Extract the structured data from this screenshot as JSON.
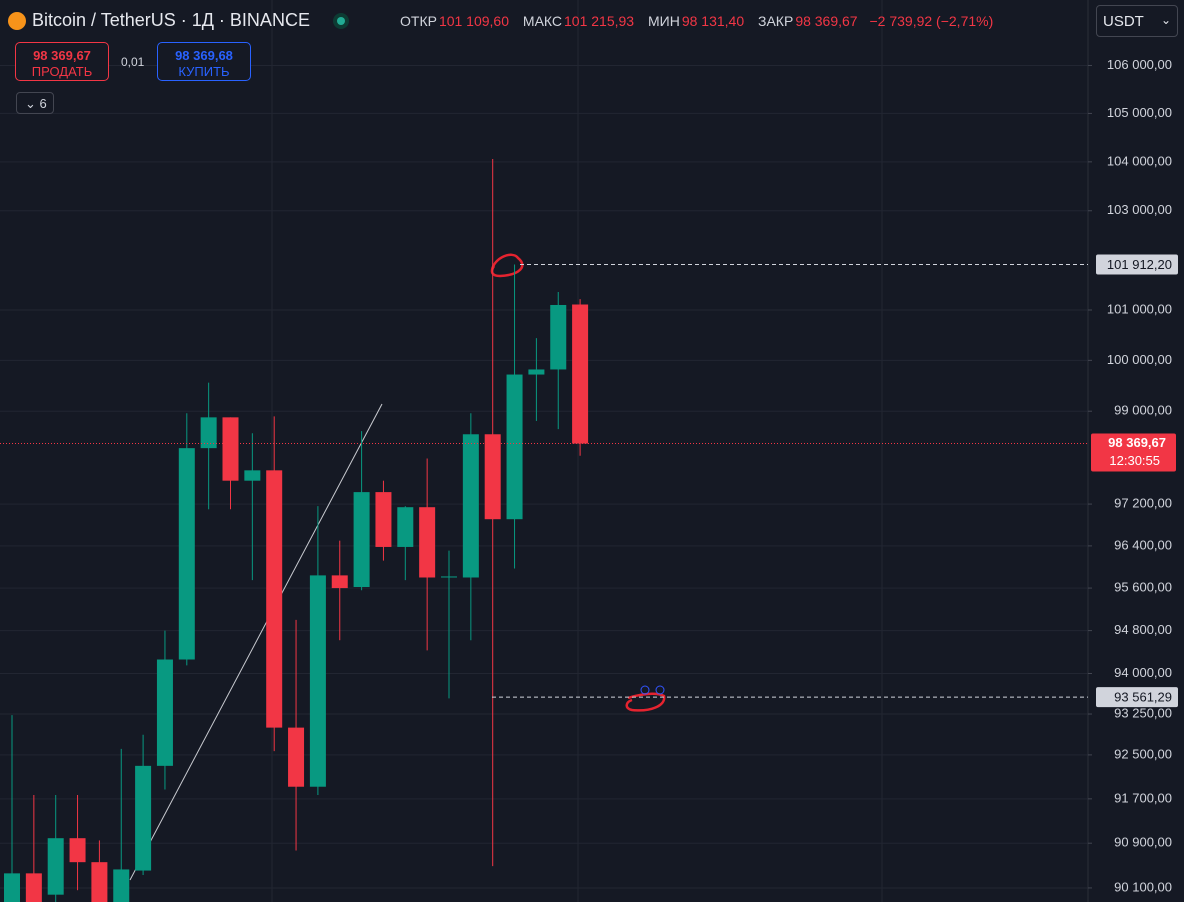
{
  "header": {
    "symbol": "Bitcoin / TetherUS · 1Д · BINANCE",
    "open_label": "ОТКР",
    "open": "101 109,60",
    "high_label": "МАКС",
    "high": "101 215,93",
    "low_label": "МИН",
    "low": "98 131,40",
    "close_label": "ЗАКР",
    "close": "98 369,67",
    "change": "−2 739,92 (−2,71%)",
    "sell_price": "98 369,67",
    "sell_label": "ПРОДАТЬ",
    "spread": "0,01",
    "buy_price": "98 369,68",
    "buy_label": "КУПИТЬ",
    "indicators_count": "6",
    "currency": "USDT"
  },
  "chart_data": {
    "type": "candlestick",
    "log_scale": true,
    "grid": true,
    "up_color": "#089981",
    "down_color": "#f23645",
    "ylim": [
      89850,
      107380
    ],
    "yticks": [
      {
        "value": 106000,
        "label": "106 000,00"
      },
      {
        "value": 105000,
        "label": "105 000,00"
      },
      {
        "value": 104000,
        "label": "104 000,00"
      },
      {
        "value": 103000,
        "label": "103 000,00"
      },
      {
        "value": 101000,
        "label": "101 000,00"
      },
      {
        "value": 100000,
        "label": "100 000,00"
      },
      {
        "value": 99000,
        "label": "99 000,00"
      },
      {
        "value": 97200,
        "label": "97 200,00"
      },
      {
        "value": 96400,
        "label": "96 400,00"
      },
      {
        "value": 95600,
        "label": "95 600,00"
      },
      {
        "value": 94800,
        "label": "94 800,00"
      },
      {
        "value": 94000,
        "label": "94 000,00"
      },
      {
        "value": 93250,
        "label": "93 250,00"
      },
      {
        "value": 92500,
        "label": "92 500,00"
      },
      {
        "value": 91700,
        "label": "91 700,00"
      },
      {
        "value": 90900,
        "label": "90 900,00"
      },
      {
        "value": 90100,
        "label": "90 100,00"
      }
    ],
    "open": [
      89850,
      90360,
      89980,
      90990,
      90560,
      89850,
      90410,
      92300,
      94260,
      98280,
      98880,
      97650,
      97850,
      93000,
      91920,
      95840,
      95620,
      97430,
      96380,
      97140,
      95800,
      95800,
      98550,
      96910,
      99720,
      99820,
      101109.6
    ],
    "high": [
      93230,
      91770,
      91770,
      91770,
      90950,
      92610,
      92870,
      94800,
      98960,
      99560,
      98880,
      98570,
      98900,
      95000,
      97160,
      96500,
      98610,
      97650,
      97160,
      98080,
      96310,
      98960,
      104060,
      101912,
      100440,
      101360,
      101215.93
    ],
    "low": [
      89850,
      89850,
      89850,
      90060,
      89850,
      89850,
      90330,
      91870,
      94150,
      97100,
      97100,
      95750,
      92570,
      90770,
      91770,
      94620,
      95560,
      96120,
      95750,
      94430,
      93540,
      94620,
      90490,
      95970,
      98810,
      98650,
      98131.4
    ],
    "close": [
      90360,
      89850,
      90990,
      90560,
      89850,
      90430,
      92300,
      94260,
      98280,
      98880,
      97650,
      97850,
      93000,
      91920,
      95840,
      95600,
      97430,
      96380,
      97140,
      95800,
      95820,
      98550,
      96910,
      99720,
      99820,
      101100,
      98369.67
    ],
    "price_lines": [
      {
        "value": 101912.2,
        "label": "101 912,20"
      },
      {
        "value": 93561.29,
        "label": "93 561,29"
      }
    ],
    "last_price": {
      "value": 98369.67,
      "label": "98 369,67",
      "countdown": "12:30:55"
    }
  }
}
